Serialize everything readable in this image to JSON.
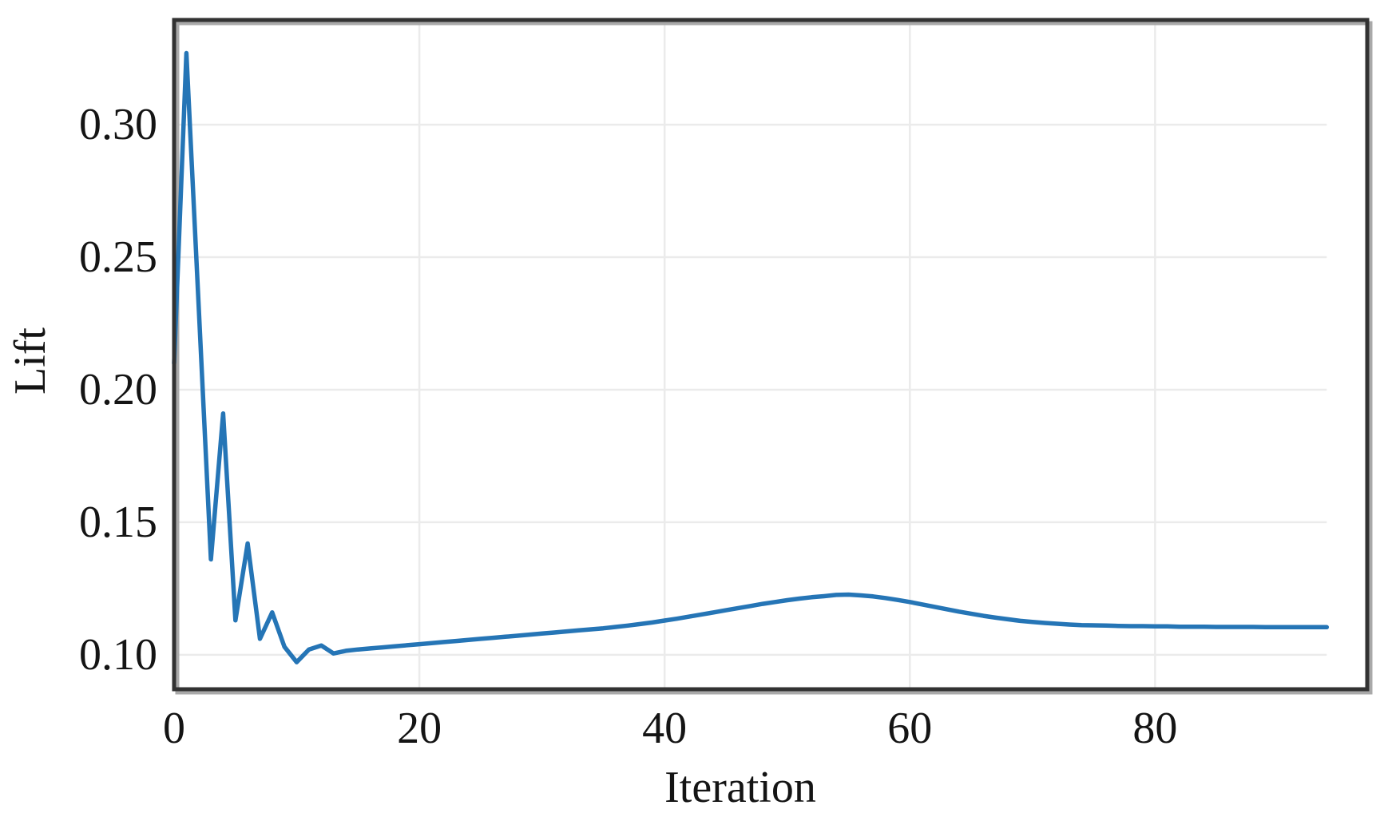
{
  "figure": {
    "background": "#ffffff",
    "xlabel": "Iteration",
    "ylabel": "Lift"
  },
  "chart_data": {
    "type": "line",
    "title": "",
    "xlabel": "Iteration",
    "ylabel": "Lift",
    "xlim": [
      0,
      97.3
    ],
    "ylim": [
      0.087,
      0.3395
    ],
    "x_ticks": [
      0,
      20,
      40,
      60,
      80
    ],
    "x_tick_labels": [
      "0",
      "20",
      "40",
      "60",
      "80"
    ],
    "y_ticks": [
      0.1,
      0.15,
      0.2,
      0.25,
      0.3
    ],
    "y_tick_labels": [
      "0.10",
      "0.15",
      "0.20",
      "0.25",
      "0.30"
    ],
    "grid": true,
    "legend_position": "none",
    "styles": {
      "line_color": "#2575b6",
      "grid_color": "#ebebeb",
      "frame_color": "#323232",
      "frame_shadow_color": "#a9a9a9",
      "text_color": "#141414",
      "plot_background": "#ffffff"
    },
    "series": [
      {
        "name": "Lift",
        "x": [
          0,
          1,
          2,
          3,
          4,
          5,
          6,
          7,
          8,
          9,
          10,
          11,
          12,
          13,
          14,
          15,
          16,
          17,
          18,
          19,
          20,
          21,
          22,
          23,
          24,
          25,
          26,
          27,
          28,
          29,
          30,
          31,
          32,
          33,
          34,
          35,
          36,
          37,
          38,
          39,
          40,
          41,
          42,
          43,
          44,
          45,
          46,
          47,
          48,
          49,
          50,
          51,
          52,
          53,
          54,
          55,
          56,
          57,
          58,
          59,
          60,
          61,
          62,
          63,
          64,
          65,
          66,
          67,
          68,
          69,
          70,
          71,
          72,
          73,
          74,
          75,
          76,
          77,
          78,
          79,
          80,
          81,
          82,
          83,
          84,
          85,
          86,
          87,
          88,
          89,
          90,
          91,
          92,
          93,
          94
        ],
        "y": [
          0.21,
          0.327,
          0.232,
          0.136,
          0.191,
          0.113,
          0.142,
          0.106,
          0.116,
          0.103,
          0.0972,
          0.102,
          0.1035,
          0.1005,
          0.1015,
          0.102,
          0.1024,
          0.1028,
          0.1032,
          0.1036,
          0.104,
          0.1044,
          0.1048,
          0.1052,
          0.1056,
          0.106,
          0.1064,
          0.1068,
          0.1072,
          0.1076,
          0.108,
          0.1084,
          0.1088,
          0.1092,
          0.1096,
          0.11,
          0.1105,
          0.111,
          0.1116,
          0.1122,
          0.1129,
          0.1136,
          0.1144,
          0.1152,
          0.116,
          0.1168,
          0.1176,
          0.1184,
          0.1192,
          0.1199,
          0.1206,
          0.1212,
          0.1217,
          0.1221,
          0.1226,
          0.1227,
          0.1224,
          0.122,
          0.1214,
          0.1207,
          0.1199,
          0.119,
          0.1181,
          0.1172,
          0.1163,
          0.1155,
          0.1147,
          0.114,
          0.1134,
          0.1128,
          0.1124,
          0.112,
          0.1117,
          0.1114,
          0.1112,
          0.1111,
          0.111,
          0.1109,
          0.1108,
          0.1108,
          0.1107,
          0.1107,
          0.1106,
          0.1106,
          0.1106,
          0.1105,
          0.1105,
          0.1105,
          0.1105,
          0.1104,
          0.1104,
          0.1104,
          0.1104,
          0.1104,
          0.1104
        ]
      }
    ]
  }
}
